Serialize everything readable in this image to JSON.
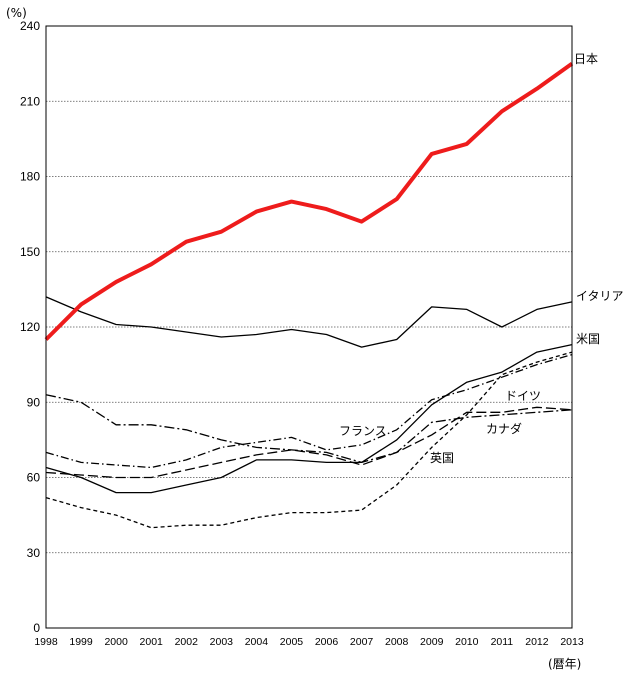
{
  "chart_data": {
    "type": "line",
    "title": "",
    "ylabel": "(%)",
    "xlabel": "(暦年)",
    "ylim": [
      0,
      240
    ],
    "yticks": [
      0,
      30,
      60,
      90,
      120,
      150,
      180,
      210,
      240
    ],
    "grid": "horizontal-dotted",
    "x": [
      "1998",
      "1999",
      "2000",
      "2001",
      "2002",
      "2003",
      "2004",
      "2005",
      "2006",
      "2007",
      "2008",
      "2009",
      "2010",
      "2011",
      "2012",
      "2013"
    ],
    "series": [
      {
        "name": "日本",
        "color": "#ee1c1c",
        "dash": "solid",
        "width": 4,
        "values": [
          115,
          129,
          138,
          145,
          154,
          158,
          166,
          170,
          167,
          162,
          171,
          189,
          193,
          206,
          215,
          225
        ]
      },
      {
        "name": "イタリア",
        "color": "#000000",
        "dash": "solid",
        "width": 1.3,
        "values": [
          132,
          126,
          121,
          120,
          118,
          116,
          117,
          119,
          117,
          112,
          115,
          128,
          127,
          120,
          127,
          130
        ]
      },
      {
        "name": "米国",
        "color": "#000000",
        "dash": "solid",
        "width": 1.3,
        "values": [
          64,
          60,
          54,
          54,
          57,
          60,
          67,
          67,
          66,
          66,
          75,
          89,
          98,
          102,
          110,
          113
        ]
      },
      {
        "name": "ドイツ",
        "color": "#000000",
        "dash": "longdash",
        "width": 1.3,
        "values": [
          62,
          61,
          60,
          60,
          63,
          66,
          69,
          71,
          69,
          65,
          70,
          77,
          86,
          86,
          88,
          87
        ]
      },
      {
        "name": "フランス",
        "color": "#000000",
        "dash": "dashdot-fine",
        "width": 1.3,
        "values": [
          70,
          66,
          65,
          64,
          67,
          72,
          74,
          76,
          71,
          73,
          79,
          91,
          95,
          100,
          105,
          109
        ]
      },
      {
        "name": "カナダ",
        "color": "#000000",
        "dash": "dashdot",
        "width": 1.3,
        "values": [
          93,
          90,
          81,
          81,
          79,
          75,
          72,
          71,
          70,
          66,
          70,
          82,
          84,
          85,
          86,
          87
        ]
      },
      {
        "name": "英国",
        "color": "#000000",
        "dash": "shortdash",
        "width": 1.3,
        "values": [
          52,
          48,
          45,
          40,
          41,
          41,
          44,
          46,
          46,
          47,
          57,
          72,
          85,
          101,
          106,
          110
        ]
      }
    ]
  }
}
